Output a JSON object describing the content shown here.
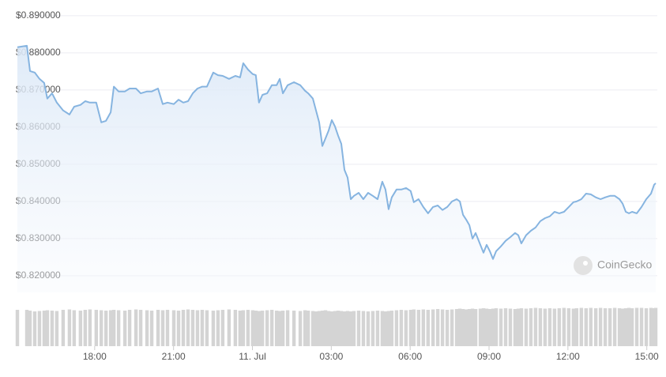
{
  "chart_data": {
    "type": "line",
    "watermark": "CoinGecko",
    "color": "#86b4e0",
    "volume_color": "#d4d4d4",
    "grid": true,
    "xlim": [
      15.0,
      39.4
    ],
    "xticks": [
      {
        "value": 18,
        "label": "18:00"
      },
      {
        "value": 21,
        "label": "21:00"
      },
      {
        "value": 24,
        "label": "11. Jul"
      },
      {
        "value": 27,
        "label": "03:00"
      },
      {
        "value": 30,
        "label": "06:00"
      },
      {
        "value": 33,
        "label": "09:00"
      },
      {
        "value": 36,
        "label": "12:00"
      },
      {
        "value": 39,
        "label": "15:00"
      }
    ],
    "ylim": [
      0.8155,
      0.8921
    ],
    "yticks": [
      {
        "value": 0.89,
        "label": "$0.890000"
      },
      {
        "value": 0.88,
        "label": "$0.880000"
      },
      {
        "value": 0.87,
        "label": "$0.870000"
      },
      {
        "value": 0.86,
        "label": "$0.860000"
      },
      {
        "value": 0.85,
        "label": "$0.850000"
      },
      {
        "value": 0.84,
        "label": "$0.840000"
      },
      {
        "value": 0.83,
        "label": "$0.830000"
      },
      {
        "value": 0.82,
        "label": "$0.820000"
      }
    ],
    "y2lim": [
      0,
      100
    ],
    "x": [
      15.06,
      15.42,
      15.54,
      15.72,
      15.9,
      16.08,
      16.2,
      16.38,
      16.56,
      16.8,
      17.04,
      17.22,
      17.46,
      17.64,
      17.82,
      18.06,
      18.25,
      18.43,
      18.61,
      18.73,
      18.91,
      19.15,
      19.33,
      19.57,
      19.75,
      19.99,
      20.17,
      20.41,
      20.59,
      20.77,
      21.01,
      21.19,
      21.37,
      21.55,
      21.73,
      21.91,
      22.09,
      22.27,
      22.51,
      22.69,
      22.87,
      23.11,
      23.35,
      23.53,
      23.65,
      23.83,
      24.01,
      24.13,
      24.25,
      24.38,
      24.56,
      24.74,
      24.92,
      25.04,
      25.16,
      25.34,
      25.58,
      25.82,
      26.0,
      26.12,
      26.3,
      26.42,
      26.54,
      26.66,
      26.78,
      26.9,
      27.02,
      27.14,
      27.26,
      27.38,
      27.5,
      27.62,
      27.74,
      27.86,
      28.04,
      28.22,
      28.4,
      28.58,
      28.76,
      28.94,
      29.06,
      29.18,
      29.3,
      29.48,
      29.66,
      29.84,
      30.02,
      30.14,
      30.32,
      30.5,
      30.68,
      30.87,
      31.05,
      31.23,
      31.41,
      31.59,
      31.77,
      31.89,
      32.01,
      32.13,
      32.25,
      32.37,
      32.49,
      32.67,
      32.79,
      32.91,
      33.03,
      33.15,
      33.27,
      33.45,
      33.63,
      33.81,
      33.99,
      34.11,
      34.23,
      34.41,
      34.59,
      34.77,
      34.95,
      35.13,
      35.31,
      35.49,
      35.67,
      35.85,
      36.03,
      36.21,
      36.33,
      36.51,
      36.69,
      36.87,
      37.06,
      37.24,
      37.42,
      37.6,
      37.78,
      37.96,
      38.08,
      38.2,
      38.32,
      38.44,
      38.62,
      38.8,
      38.98,
      39.16,
      39.28,
      39.34
    ],
    "values": [
      0.8815,
      0.8819,
      0.8751,
      0.8747,
      0.873,
      0.8719,
      0.8677,
      0.8691,
      0.8666,
      0.8645,
      0.8634,
      0.8655,
      0.866,
      0.867,
      0.8666,
      0.8666,
      0.8613,
      0.8617,
      0.864,
      0.8709,
      0.8696,
      0.8696,
      0.8704,
      0.8704,
      0.8691,
      0.8696,
      0.8696,
      0.8704,
      0.8662,
      0.8666,
      0.8662,
      0.8674,
      0.8666,
      0.867,
      0.8691,
      0.8704,
      0.8709,
      0.8709,
      0.8747,
      0.874,
      0.8738,
      0.873,
      0.8738,
      0.8734,
      0.8772,
      0.8755,
      0.8743,
      0.874,
      0.8666,
      0.8687,
      0.8691,
      0.8713,
      0.8713,
      0.873,
      0.8691,
      0.8713,
      0.8721,
      0.8713,
      0.8698,
      0.8691,
      0.8677,
      0.8645,
      0.8613,
      0.8549,
      0.857,
      0.8591,
      0.8619,
      0.8602,
      0.8577,
      0.8555,
      0.8485,
      0.8464,
      0.8406,
      0.8415,
      0.8423,
      0.8406,
      0.8423,
      0.8415,
      0.8406,
      0.8453,
      0.8432,
      0.8379,
      0.8411,
      0.8432,
      0.8432,
      0.8436,
      0.8428,
      0.8398,
      0.8406,
      0.8385,
      0.8368,
      0.8385,
      0.8389,
      0.8377,
      0.8385,
      0.84,
      0.8406,
      0.84,
      0.8364,
      0.8351,
      0.8336,
      0.83,
      0.8315,
      0.8283,
      0.8262,
      0.8283,
      0.8266,
      0.8245,
      0.8266,
      0.8279,
      0.8294,
      0.8304,
      0.8315,
      0.8309,
      0.8287,
      0.8309,
      0.8321,
      0.833,
      0.8347,
      0.8355,
      0.836,
      0.8372,
      0.8368,
      0.8372,
      0.8385,
      0.8398,
      0.84,
      0.8406,
      0.8421,
      0.8419,
      0.8411,
      0.8406,
      0.8411,
      0.8415,
      0.8415,
      0.8406,
      0.8394,
      0.8372,
      0.8368,
      0.8372,
      0.8368,
      0.8385,
      0.8406,
      0.8421,
      0.8445,
      0.8449
    ],
    "volume": [
      92,
      92,
      90,
      88,
      89,
      90,
      91,
      90,
      89,
      92,
      93,
      91,
      90,
      92,
      93,
      92,
      91,
      90,
      91,
      92,
      91,
      90,
      92,
      93,
      92,
      91,
      90,
      92,
      91,
      92,
      91,
      90,
      92,
      93,
      92,
      91,
      92,
      91,
      90,
      91,
      92,
      93,
      92,
      90,
      91,
      92,
      91,
      90,
      89,
      90,
      91,
      92,
      90,
      89,
      90,
      91,
      90,
      89,
      91,
      90,
      89,
      88,
      89,
      90,
      91,
      89,
      88,
      89,
      90,
      89,
      88,
      89,
      88,
      89,
      90,
      89,
      88,
      89,
      90,
      89,
      88,
      89,
      90,
      91,
      92,
      91,
      92,
      93,
      92,
      93,
      92,
      93,
      94,
      93,
      92,
      93,
      94,
      95,
      94,
      93,
      94,
      95,
      94,
      95,
      96,
      95,
      94,
      95,
      96,
      95,
      96,
      95,
      94,
      95,
      96,
      95,
      96,
      97,
      96,
      95,
      96,
      95,
      96,
      97,
      96,
      95,
      96,
      97,
      96,
      97,
      96,
      97,
      96,
      96,
      97,
      96,
      95,
      96,
      97,
      96,
      97,
      97,
      96,
      97,
      96,
      97
    ]
  }
}
